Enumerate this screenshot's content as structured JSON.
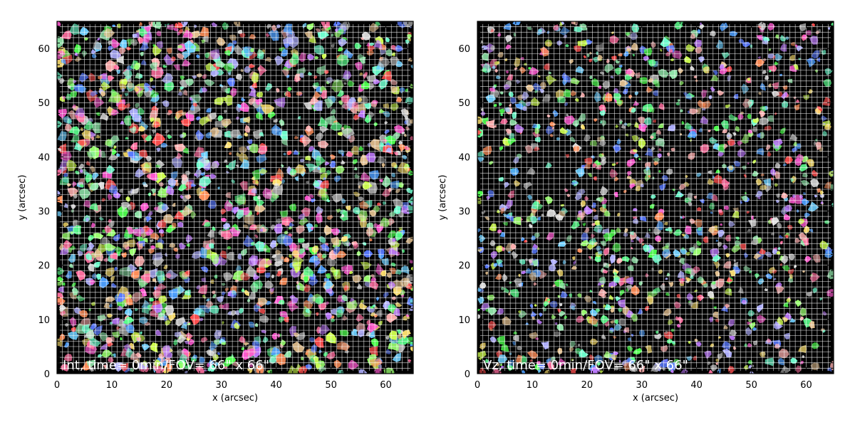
{
  "chart_data": [
    {
      "type": "heatmap",
      "title": "",
      "xlabel": "x (arcsec)",
      "ylabel": "y (arcsec)",
      "xlim": [
        0,
        65
      ],
      "ylim": [
        0,
        65
      ],
      "x_ticks": [
        "0",
        "10",
        "20",
        "30",
        "40",
        "50",
        "60"
      ],
      "y_ticks": [
        "0",
        "10",
        "20",
        "30",
        "40",
        "50",
        "60"
      ],
      "grid": true,
      "annotation": "Int, time=   0min/FOV= 66\" x 66\"",
      "background": "#000000",
      "grid_color": "#ffffff",
      "segments": {
        "approx_count": 1700,
        "size_arcsec_range": [
          0.6,
          2.2
        ],
        "distribution": "dense random"
      }
    },
    {
      "type": "heatmap",
      "title": "",
      "xlabel": "x (arcsec)",
      "ylabel": "y (arcsec)",
      "xlim": [
        0,
        65
      ],
      "ylim": [
        0,
        65
      ],
      "x_ticks": [
        "0",
        "10",
        "20",
        "30",
        "40",
        "50",
        "60"
      ],
      "y_ticks": [
        "0",
        "10",
        "20",
        "30",
        "40",
        "50",
        "60"
      ],
      "grid": true,
      "annotation": "Vz, time=   0min/FOV= 66\" x 66\"",
      "background": "#000000",
      "grid_color": "#ffffff",
      "segments": {
        "approx_count": 1300,
        "size_arcsec_range": [
          0.5,
          1.8
        ],
        "distribution": "dense random"
      }
    }
  ],
  "palette": [
    "#ff6fa0",
    "#6fd0ff",
    "#9aff6f",
    "#ffe36f",
    "#c07bff",
    "#6fffcf",
    "#ff8f5a",
    "#5a7bff",
    "#e0e0e0",
    "#ff5ad2",
    "#5aff8c",
    "#b0b0ff",
    "#ffb0b0",
    "#8fe3a8",
    "#e3c08f",
    "#4fa0ff",
    "#ff4f4f",
    "#4fff4f",
    "#d0ff4f",
    "#a0a0a0"
  ]
}
